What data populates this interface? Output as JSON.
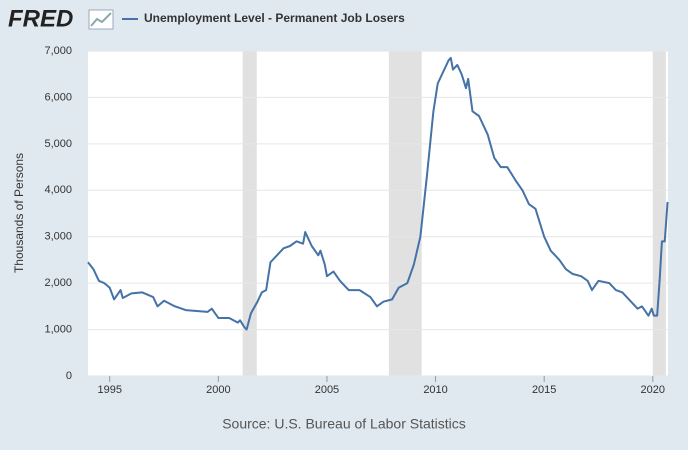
{
  "chart_data": {
    "type": "line",
    "brand": "FRED",
    "y_label": "Thousands of Persons",
    "source": "Source: U.S. Bureau of Labor Statistics",
    "xlim": [
      1994,
      2020.7
    ],
    "xticks": [
      1995,
      2000,
      2005,
      2010,
      2015,
      2020
    ],
    "ylim": [
      0,
      7000
    ],
    "yticks": [
      0,
      {
        "value": 1000,
        "label": "1,000"
      },
      {
        "value": 2000,
        "label": "2,000"
      },
      {
        "value": 3000,
        "label": "3,000"
      },
      {
        "value": 4000,
        "label": "4,000"
      },
      {
        "value": 5000,
        "label": "5,000"
      },
      {
        "value": 6000,
        "label": "6,000"
      },
      {
        "value": 7000,
        "label": "7,000"
      }
    ],
    "grid": true,
    "recessions": [
      [
        2001.12,
        2001.77
      ],
      [
        2007.85,
        2009.36
      ],
      [
        2020.0,
        2020.6
      ]
    ],
    "recession_color": "#e1e1e1",
    "x": [
      1994.0,
      1994.25,
      1994.5,
      1994.75,
      1995.0,
      1995.2,
      1995.5,
      1995.6,
      1996.0,
      1996.5,
      1997.0,
      1997.2,
      1997.5,
      1998.0,
      1998.5,
      1999.0,
      1999.5,
      1999.7,
      2000.0,
      2000.5,
      2000.9,
      2001.0,
      2001.2,
      2001.3,
      2001.5,
      2001.8,
      2002.0,
      2002.2,
      2002.4,
      2002.7,
      2003.0,
      2003.3,
      2003.6,
      2003.9,
      2004.0,
      2004.3,
      2004.6,
      2004.7,
      2004.9,
      2005.0,
      2005.3,
      2005.6,
      2006.0,
      2006.5,
      2007.0,
      2007.3,
      2007.6,
      2008.0,
      2008.3,
      2008.7,
      2009.0,
      2009.3,
      2009.6,
      2009.9,
      2010.1,
      2010.3,
      2010.6,
      2010.7,
      2010.8,
      2011.0,
      2011.2,
      2011.4,
      2011.5,
      2011.7,
      2012.0,
      2012.4,
      2012.7,
      2013.0,
      2013.3,
      2013.7,
      2014.0,
      2014.3,
      2014.6,
      2014.8,
      2015.0,
      2015.3,
      2015.7,
      2016.0,
      2016.3,
      2016.7,
      2017.0,
      2017.2,
      2017.5,
      2018.0,
      2018.3,
      2018.6,
      2019.0,
      2019.3,
      2019.5,
      2019.8,
      2019.95,
      2020.05,
      2020.2,
      2020.32,
      2020.42,
      2020.55,
      2020.68
    ],
    "series": [
      {
        "name": "Unemployment Level - Permanent Job Losers",
        "color": "#4572a7",
        "values": [
          2450,
          2300,
          2050,
          2000,
          1900,
          1650,
          1850,
          1680,
          1780,
          1800,
          1700,
          1500,
          1620,
          1500,
          1420,
          1400,
          1380,
          1450,
          1250,
          1250,
          1150,
          1200,
          1050,
          1000,
          1350,
          1600,
          1800,
          1850,
          2450,
          2600,
          2750,
          2800,
          2900,
          2850,
          3100,
          2800,
          2600,
          2700,
          2400,
          2150,
          2250,
          2050,
          1850,
          1850,
          1700,
          1500,
          1600,
          1650,
          1900,
          2000,
          2400,
          3000,
          4300,
          5700,
          6300,
          6500,
          6800,
          6850,
          6600,
          6700,
          6500,
          6200,
          6400,
          5700,
          5600,
          5200,
          4700,
          4500,
          4500,
          4200,
          4000,
          3700,
          3600,
          3300,
          3000,
          2700,
          2500,
          2300,
          2200,
          2150,
          2050,
          1850,
          2050,
          2000,
          1850,
          1800,
          1600,
          1450,
          1500,
          1300,
          1450,
          1300,
          1300,
          2100,
          2900,
          2900,
          3750
        ]
      }
    ]
  }
}
